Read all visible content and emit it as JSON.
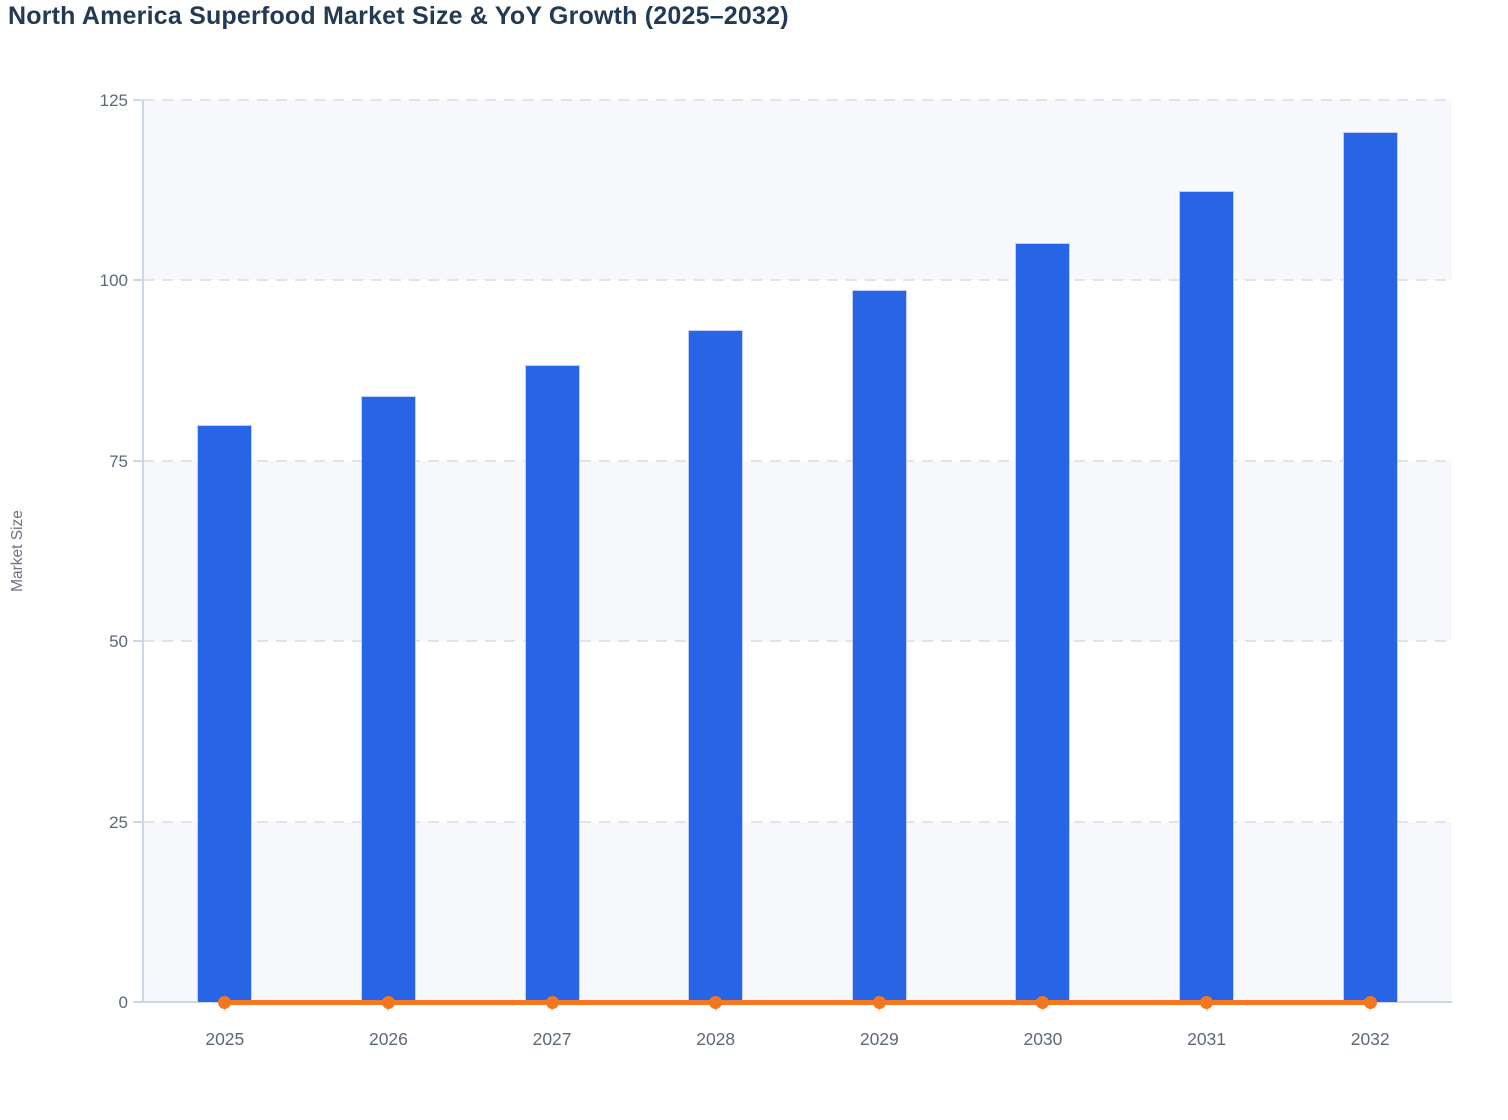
{
  "title": "North America Superfood Market Size & YoY Growth (2025–2032)",
  "chart_data": {
    "type": "bar",
    "title": "North America Superfood Market Size & YoY Growth (2025–2032)",
    "categories": [
      "2025",
      "2026",
      "2027",
      "2028",
      "2029",
      "2030",
      "2031",
      "2032"
    ],
    "series": [
      {
        "name": "Market Size",
        "type": "bar",
        "values": [
          80,
          84,
          88.3,
          93.1,
          98.7,
          105.2,
          112.4,
          120.6
        ]
      },
      {
        "name": "YoY Growth",
        "type": "line",
        "values": [
          0,
          0,
          0,
          0,
          0,
          0,
          0,
          0
        ]
      }
    ],
    "xlabel": "",
    "ylabel": "Market Size",
    "ylim": [
      0,
      125
    ],
    "yticks": [
      0,
      25,
      50,
      75,
      100,
      125
    ],
    "grid": "horizontal dashed gridlines every 25 units",
    "plot_bands": "alternating light row shading between gridlines (0-25, 50-75, 100-125)",
    "legend_position": "none",
    "line_note": "YoY Growth line renders flat at y≈0 on the shared left axis with a circular marker at each year"
  },
  "colors": {
    "bar_fill": "#2864e6",
    "bar_edge": "#c4cff2",
    "line": "#f47820",
    "marker": "#f4761f",
    "title_text": "#233a54",
    "tick_text": "#5d6878",
    "axis_label_text": "#6b7280",
    "axis_line": "#ccd6eb",
    "gridline": "#e2e3e7",
    "band_fill": "#f7f8fb",
    "background": "#ffffff"
  }
}
